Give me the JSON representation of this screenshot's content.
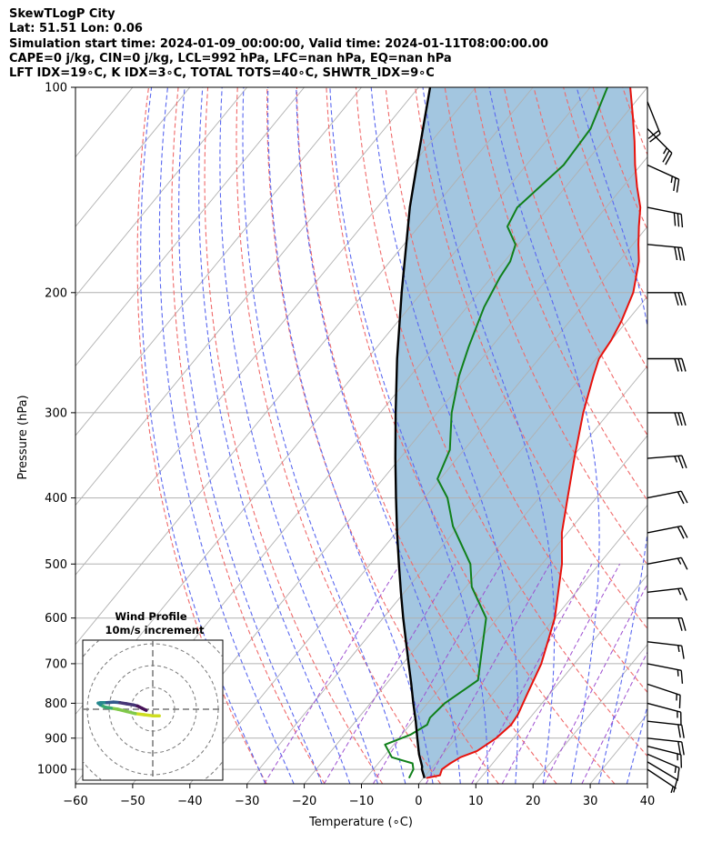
{
  "header": {
    "line1": "SkewTLogP City",
    "line2": "Lat: 51.51   Lon: 0.06",
    "line3": "Simulation start time: 2024-01-09_00:00:00, Valid time: 2024-01-11T08:00:00.00",
    "line4": "CAPE=0 j/kg, CIN=0 j/kg, LCL=992 hPa, LFC=nan hPa, EQ=nan hPa",
    "line5": "LFT IDX=19∘C, K IDX=3∘C, TOTAL TOTS=40∘C, SHWTR_IDX=9∘C"
  },
  "chart_data": {
    "type": "skew-t",
    "xlabel": "Temperature (∘C)",
    "ylabel": "Pressure (hPa)",
    "xlim": [
      -60,
      40
    ],
    "ylim": [
      1050,
      100
    ],
    "x_ticks": [
      -60,
      -50,
      -40,
      -30,
      -20,
      -10,
      0,
      10,
      20,
      30,
      40
    ],
    "x_tick_labels": [
      "−60",
      "−50",
      "−40",
      "−30",
      "−20",
      "−10",
      "0",
      "10",
      "20",
      "30",
      "40"
    ],
    "y_ticks": [
      1000,
      900,
      800,
      700,
      600,
      500,
      400,
      300,
      200,
      100
    ],
    "y_tick_labels": [
      "1000",
      "900",
      "800",
      "700",
      "600",
      "500",
      "400",
      "300",
      "200",
      "100"
    ],
    "grid": true,
    "colors": {
      "temperature": "#e8120c",
      "dewpoint": "#10801a",
      "parcel": "#000000",
      "cape_fill": "#a3c6e0",
      "dry_adiabat": "#f06a6a",
      "moist_adiabat": "#5a68f0",
      "mixing_ratio": "#9e4fd0",
      "isotherm": "#b0b0b0"
    },
    "series": [
      {
        "key": "temperature",
        "points": [
          [
            1030,
            0.5
          ],
          [
            1020,
            2.5
          ],
          [
            1000,
            2.0
          ],
          [
            980,
            2.6
          ],
          [
            960,
            3.5
          ],
          [
            940,
            5.5
          ],
          [
            900,
            7.0
          ],
          [
            860,
            7.7
          ],
          [
            830,
            7.4
          ],
          [
            780,
            6.2
          ],
          [
            700,
            4.2
          ],
          [
            600,
            0.0
          ],
          [
            500,
            -6.5
          ],
          [
            450,
            -11.0
          ],
          [
            400,
            -15.0
          ],
          [
            350,
            -19.5
          ],
          [
            300,
            -24.5
          ],
          [
            265,
            -28.0
          ],
          [
            250,
            -29.5
          ],
          [
            235,
            -30.0
          ],
          [
            220,
            -31.0
          ],
          [
            200,
            -33.0
          ],
          [
            180,
            -36.5
          ],
          [
            170,
            -39.0
          ],
          [
            160,
            -41.5
          ],
          [
            150,
            -44.0
          ],
          [
            140,
            -47.5
          ],
          [
            130,
            -51.0
          ],
          [
            120,
            -54.5
          ],
          [
            110,
            -58.5
          ],
          [
            100,
            -63.0
          ]
        ]
      },
      {
        "key": "dewpoint",
        "points": [
          [
            1030,
            -2.5
          ],
          [
            1000,
            -3.0
          ],
          [
            980,
            -4.0
          ],
          [
            960,
            -8.5
          ],
          [
            920,
            -11.5
          ],
          [
            890,
            -8.5
          ],
          [
            860,
            -7.0
          ],
          [
            840,
            -7.5
          ],
          [
            800,
            -7.0
          ],
          [
            740,
            -4.5
          ],
          [
            700,
            -6.5
          ],
          [
            600,
            -12.0
          ],
          [
            540,
            -19.0
          ],
          [
            500,
            -22.5
          ],
          [
            440,
            -31.0
          ],
          [
            400,
            -36.0
          ],
          [
            375,
            -40.5
          ],
          [
            340,
            -42.5
          ],
          [
            300,
            -47.5
          ],
          [
            265,
            -51.5
          ],
          [
            240,
            -54.0
          ],
          [
            210,
            -57.0
          ],
          [
            190,
            -58.5
          ],
          [
            180,
            -59.0
          ],
          [
            170,
            -60.5
          ],
          [
            160,
            -64.5
          ],
          [
            150,
            -65.5
          ],
          [
            130,
            -63.5
          ],
          [
            115,
            -64.0
          ],
          [
            100,
            -67.0
          ]
        ]
      },
      {
        "key": "parcel",
        "points": [
          [
            1030,
            0.2
          ],
          [
            1000,
            -1.5
          ],
          [
            990,
            -1.9
          ],
          [
            950,
            -4.2
          ],
          [
            900,
            -6.8
          ],
          [
            850,
            -9.5
          ],
          [
            800,
            -12.5
          ],
          [
            750,
            -15.6
          ],
          [
            700,
            -19.0
          ],
          [
            650,
            -22.6
          ],
          [
            600,
            -26.5
          ],
          [
            550,
            -30.6
          ],
          [
            500,
            -35.0
          ],
          [
            450,
            -39.8
          ],
          [
            400,
            -45.0
          ],
          [
            350,
            -50.8
          ],
          [
            300,
            -57.3
          ],
          [
            250,
            -64.8
          ],
          [
            200,
            -73.5
          ],
          [
            150,
            -84.3
          ],
          [
            125,
            -90.5
          ],
          [
            100,
            -98.0
          ]
        ]
      }
    ],
    "wind_barbs": [
      {
        "p": 1000,
        "u": -6,
        "v": 4
      },
      {
        "p": 975,
        "u": -10,
        "v": 6
      },
      {
        "p": 950,
        "u": -14,
        "v": 6
      },
      {
        "p": 925,
        "u": -16,
        "v": 4
      },
      {
        "p": 900,
        "u": -18,
        "v": 2
      },
      {
        "p": 850,
        "u": -18,
        "v": 2
      },
      {
        "p": 800,
        "u": -15,
        "v": 4
      },
      {
        "p": 750,
        "u": -15,
        "v": 5
      },
      {
        "p": 700,
        "u": -15,
        "v": 3
      },
      {
        "p": 650,
        "u": -17,
        "v": 2
      },
      {
        "p": 600,
        "u": -18,
        "v": 0
      },
      {
        "p": 550,
        "u": -17,
        "v": -2
      },
      {
        "p": 500,
        "u": -16,
        "v": -3
      },
      {
        "p": 450,
        "u": -20,
        "v": -4
      },
      {
        "p": 400,
        "u": -20,
        "v": -4
      },
      {
        "p": 350,
        "u": -25,
        "v": -2
      },
      {
        "p": 300,
        "u": -30,
        "v": 0
      },
      {
        "p": 250,
        "u": -32,
        "v": 0
      },
      {
        "p": 200,
        "u": -30,
        "v": 0
      },
      {
        "p": 170,
        "u": -32,
        "v": 3
      },
      {
        "p": 150,
        "u": -30,
        "v": 6
      },
      {
        "p": 130,
        "u": -22,
        "v": 10
      },
      {
        "p": 115,
        "u": -16,
        "v": 16
      },
      {
        "p": 105,
        "u": -8,
        "v": 20
      }
    ],
    "hodograph": {
      "title": "Wind Profile",
      "subtitle": "10m/s increment",
      "ring_step": 10,
      "rings": 3,
      "trace_colors": [
        "#cddd20",
        "#80c84a",
        "#3aaa70",
        "#26888e",
        "#31588c",
        "#453575",
        "#461258"
      ],
      "points": [
        [
          3,
          -3
        ],
        [
          0,
          -3
        ],
        [
          -4,
          -2.5
        ],
        [
          -8,
          -2
        ],
        [
          -12,
          -1
        ],
        [
          -16,
          0
        ],
        [
          -19,
          0.5
        ],
        [
          -22,
          1
        ],
        [
          -24,
          2
        ],
        [
          -25,
          2.8
        ],
        [
          -24,
          3
        ],
        [
          -21,
          3
        ],
        [
          -18,
          3.3
        ],
        [
          -15,
          3
        ],
        [
          -12,
          2.5
        ],
        [
          -9,
          2
        ],
        [
          -7,
          1.5
        ],
        [
          -5,
          0.5
        ],
        [
          -3,
          -0.5
        ]
      ]
    }
  }
}
